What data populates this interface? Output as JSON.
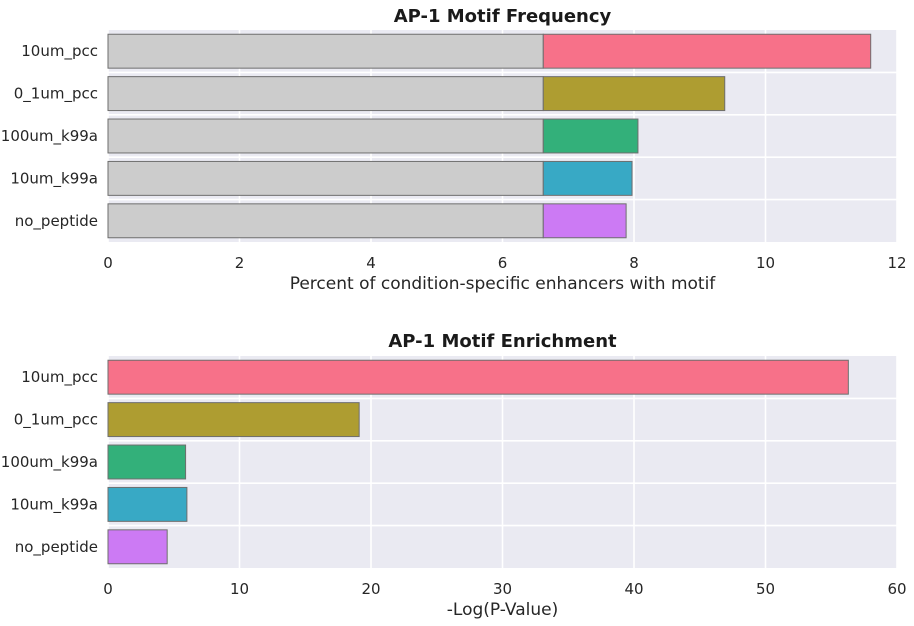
{
  "chart_data": [
    {
      "type": "bar",
      "orientation": "horizontal",
      "stacked": true,
      "title": "AP-1 Motif Frequency",
      "xlabel": "Percent of condition-specific enhancers with motif",
      "ylabel": "",
      "categories": [
        "10um_pcc",
        "0_1um_pcc",
        "100um_k99a",
        "10um_k99a",
        "no_peptide"
      ],
      "background_value": 6.62,
      "background_color": "#cccccc",
      "values": [
        11.6,
        9.38,
        8.06,
        7.97,
        7.88
      ],
      "colors": [
        "#f77189",
        "#ae9d31",
        "#33b07a",
        "#38a9c5",
        "#cc7af4"
      ],
      "xlim": [
        0,
        12
      ],
      "xticks": [
        0,
        2,
        4,
        6,
        8,
        10,
        12
      ],
      "grid": true
    },
    {
      "type": "bar",
      "orientation": "horizontal",
      "title": "AP-1 Motif Enrichment",
      "xlabel": "-Log(P-Value)",
      "ylabel": "",
      "categories": [
        "10um_pcc",
        "0_1um_pcc",
        "100um_k99a",
        "10um_k99a",
        "no_peptide"
      ],
      "values": [
        56.3,
        19.1,
        5.9,
        6.0,
        4.5
      ],
      "colors": [
        "#f77189",
        "#ae9d31",
        "#33b07a",
        "#38a9c5",
        "#cc7af4"
      ],
      "xlim": [
        0,
        60
      ],
      "xticks": [
        0,
        10,
        20,
        30,
        40,
        50,
        60
      ],
      "grid": true
    }
  ]
}
